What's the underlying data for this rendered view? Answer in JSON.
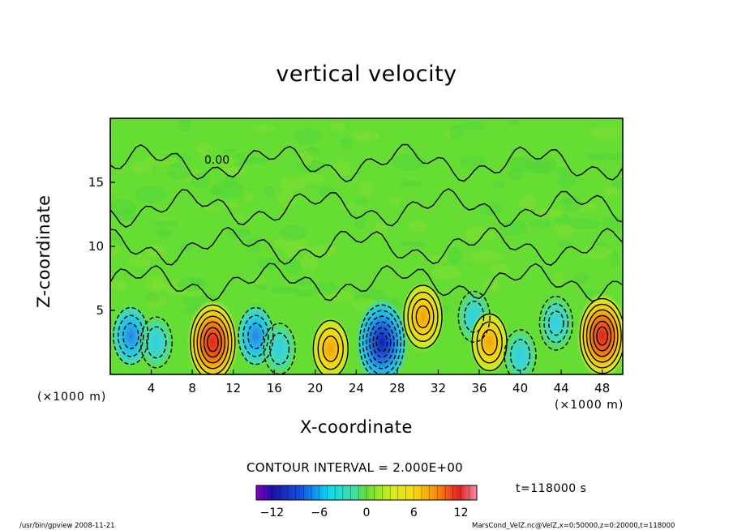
{
  "title": "vertical velocity",
  "chart_data": {
    "type": "heatmap",
    "title": "vertical velocity",
    "xlabel": "X-coordinate",
    "ylabel": "Z-coordinate",
    "x_unit": "(×1000 m)",
    "z_unit": "(×1000 m)",
    "xlim": [
      0,
      50
    ],
    "zlim": [
      0,
      20
    ],
    "x_ticks": [
      4,
      8,
      12,
      16,
      20,
      24,
      28,
      32,
      36,
      40,
      44,
      48
    ],
    "z_ticks": [
      5,
      10,
      15
    ],
    "contour_label": "0.00",
    "contour_interval": "CONTOUR INTERVAL = 2.000E+00",
    "time": "t=118000 s",
    "colorbar": {
      "range": [
        -14,
        14
      ],
      "ticks": [
        -12,
        -6,
        0,
        6,
        12
      ]
    },
    "features": [
      {
        "x": 2,
        "z": 3,
        "w": -6
      },
      {
        "x": 4.5,
        "z": 2.5,
        "w": -4
      },
      {
        "x": 10,
        "z": 2.5,
        "w": 12
      },
      {
        "x": 14.2,
        "z": 3,
        "w": -6
      },
      {
        "x": 16.5,
        "z": 2,
        "w": -4
      },
      {
        "x": 21.5,
        "z": 2,
        "w": 6
      },
      {
        "x": 26.5,
        "z": 2.5,
        "w": -12
      },
      {
        "x": 30.5,
        "z": 4.5,
        "w": 8
      },
      {
        "x": 35.5,
        "z": 4.5,
        "w": -4
      },
      {
        "x": 37,
        "z": 2.5,
        "w": 6
      },
      {
        "x": 40,
        "z": 1.5,
        "w": -4
      },
      {
        "x": 43.5,
        "z": 4,
        "w": -5
      },
      {
        "x": 48,
        "z": 3,
        "w": 12
      }
    ]
  },
  "footer": {
    "left": "/usr/bin/gpview   2008-11-21",
    "right": "MarsCond_VelZ.nc@VelZ,x=0:50000,z=0:20000,t=118000"
  }
}
